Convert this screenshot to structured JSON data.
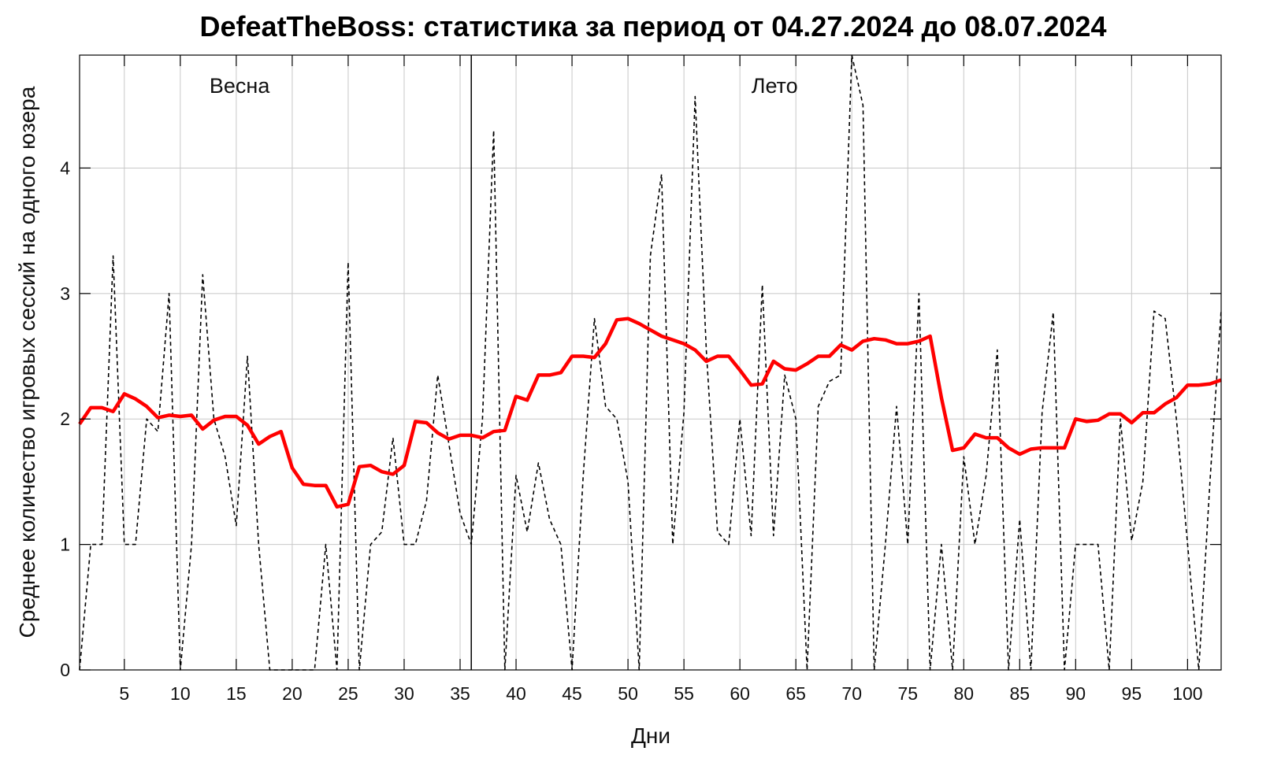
{
  "chart_data": {
    "type": "line",
    "title": "DefeatTheBoss: статистика за период от 04.27.2024 до 08.07.2024",
    "xlabel": "Дни",
    "ylabel": "Среднее количество игровых сессий на одного юзера",
    "xlim": [
      1,
      103
    ],
    "ylim": [
      0,
      4.9
    ],
    "x_ticks": [
      5,
      10,
      15,
      20,
      25,
      30,
      35,
      40,
      45,
      50,
      55,
      60,
      65,
      70,
      75,
      80,
      85,
      90,
      95,
      100
    ],
    "y_ticks": [
      0,
      1,
      2,
      3,
      4
    ],
    "grid": true,
    "divider_x": 36,
    "annotations": [
      {
        "text": "Весна",
        "x": 15.3,
        "y": 4.6
      },
      {
        "text": "Лето",
        "x": 63.1,
        "y": 4.6
      }
    ],
    "series": [
      {
        "style": "dashed",
        "color": "#000000",
        "values": [
          0.0,
          1.0,
          1.0,
          3.3,
          1.0,
          1.0,
          2.0,
          1.9,
          3.0,
          0.0,
          1.0,
          3.15,
          2.0,
          1.7,
          1.15,
          2.5,
          1.0,
          0.0,
          0.0,
          0.0,
          0.0,
          0.0,
          1.0,
          0.0,
          3.25,
          0.0,
          1.0,
          1.1,
          1.85,
          1.0,
          1.0,
          1.35,
          2.35,
          1.8,
          1.25,
          1.0,
          2.0,
          4.3,
          0.0,
          1.55,
          1.1,
          1.65,
          1.2,
          1.0,
          0.0,
          1.55,
          2.8,
          2.1,
          2.0,
          1.5,
          0.0,
          3.3,
          3.95,
          1.0,
          2.05,
          4.57,
          2.55,
          1.1,
          1.0,
          2.0,
          1.07,
          3.07,
          1.07,
          2.35,
          2.0,
          0.0,
          2.1,
          2.3,
          2.35,
          4.9,
          4.5,
          0.0,
          1.0,
          2.1,
          1.0,
          3.0,
          0.0,
          1.0,
          0.0,
          1.7,
          1.0,
          1.55,
          2.55,
          0.0,
          1.2,
          0.0,
          2.05,
          2.85,
          0.0,
          1.0,
          1.0,
          1.0,
          0.0,
          2.0,
          1.03,
          1.5,
          2.86,
          2.8,
          2.0,
          1.0,
          0.0,
          1.5,
          2.87
        ]
      },
      {
        "style": "solid",
        "color": "#ff0000",
        "values": [
          1.96,
          2.09,
          2.09,
          2.06,
          2.2,
          2.16,
          2.1,
          2.01,
          2.03,
          2.02,
          2.03,
          1.92,
          1.99,
          2.02,
          2.02,
          1.95,
          1.8,
          1.86,
          1.9,
          1.61,
          1.48,
          1.47,
          1.47,
          1.3,
          1.32,
          1.62,
          1.63,
          1.58,
          1.56,
          1.63,
          1.98,
          1.97,
          1.89,
          1.84,
          1.87,
          1.87,
          1.85,
          1.9,
          1.91,
          2.18,
          2.15,
          2.35,
          2.35,
          2.37,
          2.5,
          2.5,
          2.49,
          2.6,
          2.79,
          2.8,
          2.76,
          2.71,
          2.66,
          2.63,
          2.6,
          2.55,
          2.46,
          2.5,
          2.5,
          2.39,
          2.27,
          2.28,
          2.46,
          2.4,
          2.39,
          2.44,
          2.5,
          2.5,
          2.59,
          2.55,
          2.62,
          2.64,
          2.63,
          2.6,
          2.6,
          2.62,
          2.66,
          2.17,
          1.75,
          1.77,
          1.88,
          1.85,
          1.85,
          1.77,
          1.72,
          1.76,
          1.77,
          1.77,
          1.77,
          2.0,
          1.98,
          1.99,
          2.04,
          2.04,
          1.97,
          2.05,
          2.05,
          2.12,
          2.17,
          2.27,
          2.27,
          2.28,
          2.31
        ]
      }
    ]
  }
}
